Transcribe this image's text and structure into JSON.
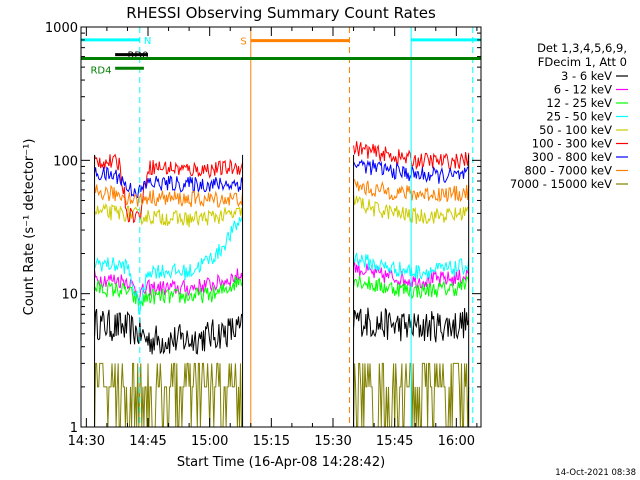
{
  "chart_data": {
    "type": "line",
    "title": "RHESSI Observing Summary Count Rates",
    "xlabel": "Start Time (16-Apr-08 14:28:42)",
    "ylabel": "Count Rate (s⁻¹ detector⁻¹)",
    "y_scale": "log",
    "ylim": [
      1,
      1000
    ],
    "y_ticks": [
      {
        "value": 1,
        "label": "1"
      },
      {
        "value": 10,
        "label": "10"
      },
      {
        "value": 100,
        "label": "100"
      },
      {
        "value": 1000,
        "label": "1000"
      }
    ],
    "xlim": [
      "14:28:42",
      "16:06"
    ],
    "x_ticks": [
      "14:30",
      "14:45",
      "15:00",
      "15:15",
      "15:30",
      "15:45",
      "16:00"
    ],
    "grid": false,
    "legend": {
      "position": "top-right",
      "header": [
        "Det 1,3,4,5,6,9,",
        "FDecim 1, Att 0"
      ]
    },
    "segments": [
      [
        "14:32",
        "15:08"
      ],
      [
        "15:35",
        "16:03"
      ]
    ],
    "series": [
      {
        "name": "3 - 6 keV",
        "color": "#000000",
        "seg1": [
          [
            14.32,
            6.0
          ],
          [
            14.4,
            5.5
          ],
          [
            14.43,
            5.0
          ],
          [
            14.45,
            4.5
          ],
          [
            14.55,
            4.5
          ],
          [
            15.02,
            5.0
          ],
          [
            15.08,
            5.5
          ]
        ],
        "seg2": [
          [
            15.35,
            6.5
          ],
          [
            15.4,
            6.0
          ],
          [
            15.5,
            5.6
          ],
          [
            16.0,
            5.8
          ],
          [
            16.03,
            6.2
          ]
        ]
      },
      {
        "name": "6 - 12 keV",
        "color": "#ff00ff",
        "seg1": [
          [
            14.32,
            13.0
          ],
          [
            14.4,
            12.5
          ],
          [
            14.43,
            10.0
          ],
          [
            14.45,
            11.0
          ],
          [
            14.55,
            11.0
          ],
          [
            15.02,
            12.0
          ],
          [
            15.08,
            14.0
          ]
        ],
        "seg2": [
          [
            15.35,
            16.0
          ],
          [
            15.4,
            14.0
          ],
          [
            15.5,
            12.5
          ],
          [
            16.0,
            13.0
          ],
          [
            16.03,
            14.0
          ]
        ]
      },
      {
        "name": "12 - 25 keV",
        "color": "#00ff00",
        "seg1": [
          [
            14.32,
            11.0
          ],
          [
            14.4,
            10.5
          ],
          [
            14.43,
            8.5
          ],
          [
            14.45,
            9.5
          ],
          [
            14.55,
            9.5
          ],
          [
            15.02,
            10.0
          ],
          [
            15.08,
            13.0
          ]
        ],
        "seg2": [
          [
            15.35,
            13.0
          ],
          [
            15.4,
            11.5
          ],
          [
            15.5,
            10.5
          ],
          [
            16.0,
            11.0
          ],
          [
            16.03,
            12.0
          ]
        ]
      },
      {
        "name": "25 - 50 keV",
        "color": "#00ffff",
        "seg1": [
          [
            14.32,
            17.0
          ],
          [
            14.4,
            16.0
          ],
          [
            14.43,
            7.5
          ],
          [
            14.45,
            15.0
          ],
          [
            14.55,
            14.5
          ],
          [
            15.02,
            20.0
          ],
          [
            15.08,
            38.0
          ]
        ],
        "seg2": [
          [
            15.35,
            19.0
          ],
          [
            15.4,
            16.5
          ],
          [
            15.5,
            14.5
          ],
          [
            16.0,
            15.5
          ],
          [
            16.03,
            16.5
          ]
        ]
      },
      {
        "name": "50 - 100 keV",
        "color": "#cccc00",
        "seg1": [
          [
            14.32,
            41.0
          ],
          [
            14.4,
            40.0
          ],
          [
            14.43,
            38.0
          ],
          [
            14.45,
            38.0
          ],
          [
            14.55,
            36.0
          ],
          [
            15.02,
            38.0
          ],
          [
            15.08,
            40.0
          ]
        ],
        "seg2": [
          [
            15.35,
            50.0
          ],
          [
            15.4,
            43.0
          ],
          [
            15.5,
            38.0
          ],
          [
            16.0,
            39.0
          ],
          [
            16.03,
            42.0
          ]
        ]
      },
      {
        "name": "100 - 300 keV",
        "color": "#ff0000",
        "seg1": [
          [
            14.32,
            100.0
          ],
          [
            14.38,
            95.0
          ],
          [
            14.4,
            40.0
          ],
          [
            14.43,
            38.0
          ],
          [
            14.45,
            90.0
          ],
          [
            14.55,
            85.0
          ],
          [
            15.02,
            86.0
          ],
          [
            15.08,
            90.0
          ]
        ],
        "seg2": [
          [
            15.35,
            125.0
          ],
          [
            15.4,
            115.0
          ],
          [
            15.5,
            100.0
          ],
          [
            16.0,
            98.0
          ],
          [
            16.03,
            102.0
          ]
        ]
      },
      {
        "name": "300 - 800 keV",
        "color": "#0000ff",
        "seg1": [
          [
            14.32,
            80.0
          ],
          [
            14.38,
            76.0
          ],
          [
            14.4,
            62.0
          ],
          [
            14.43,
            58.0
          ],
          [
            14.45,
            68.0
          ],
          [
            14.55,
            66.0
          ],
          [
            15.02,
            66.0
          ],
          [
            15.08,
            67.0
          ]
        ],
        "seg2": [
          [
            15.35,
            95.0
          ],
          [
            15.4,
            88.0
          ],
          [
            15.5,
            78.0
          ],
          [
            16.0,
            76.0
          ],
          [
            16.03,
            78.0
          ]
        ]
      },
      {
        "name": "800 - 7000 keV",
        "color": "#ff8000",
        "seg1": [
          [
            14.32,
            58.0
          ],
          [
            14.38,
            55.0
          ],
          [
            14.43,
            50.0
          ],
          [
            14.45,
            53.0
          ],
          [
            14.55,
            51.0
          ],
          [
            15.02,
            51.0
          ],
          [
            15.08,
            52.0
          ]
        ],
        "seg2": [
          [
            15.35,
            65.0
          ],
          [
            15.4,
            60.0
          ],
          [
            15.5,
            56.0
          ],
          [
            16.0,
            56.0
          ],
          [
            16.03,
            58.0
          ]
        ]
      },
      {
        "name": "7000 - 15000 keV",
        "color": "#808000",
        "seg1": [
          [
            14.32,
            2.5
          ],
          [
            14.4,
            2.3
          ],
          [
            14.43,
            2.0
          ],
          [
            14.45,
            1.9
          ],
          [
            14.55,
            1.9
          ],
          [
            15.02,
            1.9
          ],
          [
            15.08,
            2.0
          ]
        ],
        "seg2": [
          [
            15.35,
            2.2
          ],
          [
            15.4,
            2.0
          ],
          [
            15.5,
            2.0
          ],
          [
            16.0,
            2.1
          ],
          [
            16.03,
            2.3
          ]
        ]
      }
    ],
    "annotations": {
      "vertical_lines": [
        {
          "x": "14:43",
          "color": "#00ffff",
          "style": "dashed"
        },
        {
          "x": "15:10",
          "color": "#ff8000",
          "style": "solid"
        },
        {
          "x": "15:34",
          "color": "#ff8000",
          "style": "dashed"
        },
        {
          "x": "15:49",
          "color": "#00ffff",
          "style": "solid"
        },
        {
          "x": "16:04",
          "color": "#00ffff",
          "style": "dashed"
        }
      ],
      "bars": [
        {
          "label": "",
          "x0": "14:28:42",
          "x1": "14:43",
          "value": 800,
          "color": "#00ffff"
        },
        {
          "label": "N",
          "x0": "",
          "x1": "",
          "value": 800,
          "color": "#00ffff"
        },
        {
          "label": "RD0",
          "x0": "14:37",
          "x1": "14:45",
          "value": 620,
          "color": "#000000"
        },
        {
          "label": "RD4",
          "x0": "14:37",
          "x1": "14:44",
          "value": 490,
          "color": "#008000"
        },
        {
          "label": "",
          "x0": "14:28:42",
          "x1": "16:06",
          "value": 580,
          "color": "#008000"
        },
        {
          "label": "S",
          "x0": "15:10",
          "x1": "15:34",
          "value": 790,
          "color": "#ff8000"
        },
        {
          "label": "",
          "x0": "15:49",
          "x1": "16:06",
          "value": 800,
          "color": "#00ffff"
        }
      ]
    },
    "footer": "14-Oct-2021 08:38"
  }
}
